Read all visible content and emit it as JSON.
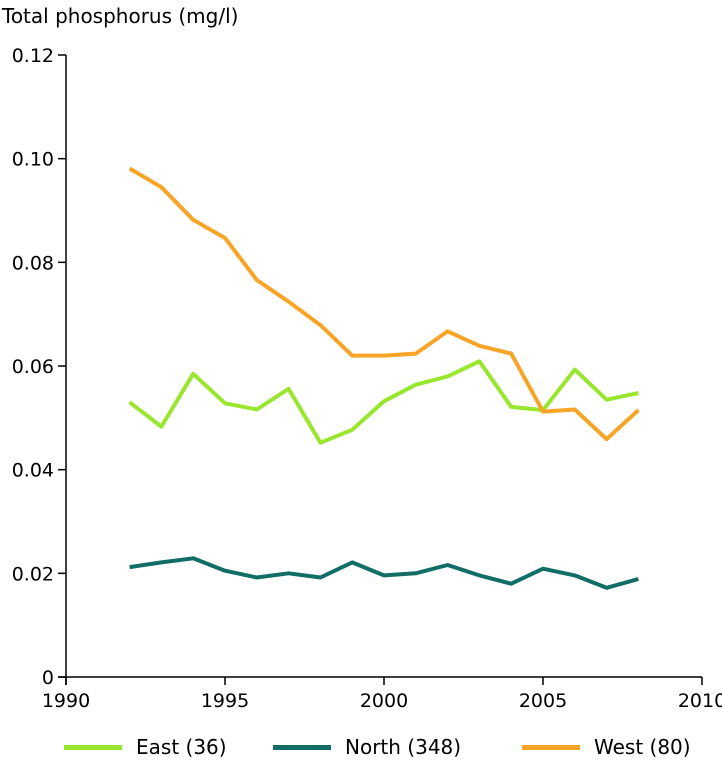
{
  "chart_data": {
    "type": "line",
    "title": "",
    "ylabel": "Total phosphorus (mg/l)",
    "xlabel": "",
    "xlim": [
      1990,
      2010
    ],
    "ylim": [
      0,
      0.12
    ],
    "x_ticks": [
      "1990",
      "1995",
      "2000",
      "2005",
      "2010"
    ],
    "y_ticks": [
      "0",
      "0.02",
      "0.04",
      "0.06",
      "0.08",
      "0.10",
      "0.12"
    ],
    "legend_position": "bottom",
    "grid": false,
    "x": [
      1992,
      1993,
      1994,
      1995,
      1996,
      1997,
      1998,
      1999,
      2000,
      2001,
      2002,
      2003,
      2004,
      2005,
      2006,
      2007,
      2008
    ],
    "series": [
      {
        "name": "East (36)",
        "color": "#99e62e",
        "values": [
          0.053,
          0.0483,
          0.0585,
          0.0528,
          0.0516,
          0.0556,
          0.0452,
          0.0477,
          0.0532,
          0.0564,
          0.058,
          0.0609,
          0.0521,
          0.0515,
          0.0593,
          0.0535,
          0.0548
        ]
      },
      {
        "name": "North (348)",
        "color": "#116e66",
        "values": [
          0.0212,
          0.0221,
          0.0229,
          0.0205,
          0.0192,
          0.02,
          0.0192,
          0.0221,
          0.0196,
          0.02,
          0.0216,
          0.0196,
          0.018,
          0.0209,
          0.0196,
          0.0172,
          0.0189
        ]
      },
      {
        "name": "West (80)",
        "color": "#f7a427",
        "values": [
          0.0981,
          0.0945,
          0.0882,
          0.0847,
          0.0766,
          0.0724,
          0.0679,
          0.062,
          0.062,
          0.0624,
          0.0667,
          0.0639,
          0.0624,
          0.0512,
          0.0516,
          0.0459,
          0.0515
        ]
      }
    ]
  }
}
